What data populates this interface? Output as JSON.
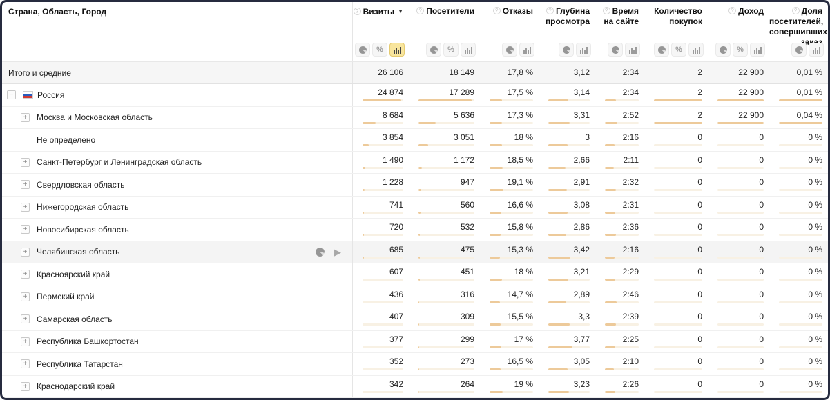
{
  "table": {
    "name_column_header": "Страна, Область, Город",
    "columns": [
      {
        "id": "visits",
        "label": "Визиты",
        "help": true,
        "sort": "desc",
        "toggles": [
          "pie",
          "percent",
          "bar"
        ],
        "active": "bar"
      },
      {
        "id": "visitors",
        "label": "Посетители",
        "help": true,
        "toggles": [
          "pie",
          "percent",
          "bar"
        ]
      },
      {
        "id": "bounces",
        "label": "Отказы",
        "help": true,
        "toggles": [
          "pie",
          "bar"
        ]
      },
      {
        "id": "depth",
        "label": "Глубина просмотра",
        "help": true,
        "toggles": [
          "pie",
          "bar"
        ]
      },
      {
        "id": "time-on-site",
        "label": "Время на сайте",
        "help": true,
        "toggles": [
          "pie",
          "bar"
        ]
      },
      {
        "id": "purchases",
        "label": "Количество покупок",
        "help": false,
        "toggles": [
          "pie",
          "percent",
          "bar"
        ]
      },
      {
        "id": "revenue",
        "label": "Доход",
        "help": true,
        "toggles": [
          "pie",
          "percent",
          "bar"
        ]
      },
      {
        "id": "order-share",
        "label": "Доля посетителей, совершивших заказ",
        "help": true,
        "toggles": [
          "pie",
          "bar"
        ]
      }
    ],
    "totals_row": {
      "label": "Итого и средние",
      "values": [
        "26 106",
        "18 149",
        "17,8 %",
        "3,12",
        "2:34",
        "2",
        "22 900",
        "0,01 %"
      ]
    },
    "rows": [
      {
        "label": "Россия",
        "level": 0,
        "expand": "minus",
        "flag": "russia",
        "values": [
          "24 874",
          "17 289",
          "17,5 %",
          "3,14",
          "2:34",
          "2",
          "22 900",
          "0,01 %"
        ],
        "bars": [
          0.95,
          0.95,
          0.28,
          0.48,
          0.32,
          1,
          1,
          1
        ]
      },
      {
        "label": "Москва и Московская область",
        "level": 1,
        "expand": "plus",
        "values": [
          "8 684",
          "5 636",
          "17,3 %",
          "3,31",
          "2:52",
          "2",
          "22 900",
          "0,04 %"
        ],
        "bars": [
          0.33,
          0.31,
          0.28,
          0.51,
          0.36,
          1,
          1,
          1
        ]
      },
      {
        "label": "Не определено",
        "level": 1,
        "expand": null,
        "values": [
          "3 854",
          "3 051",
          "18 %",
          "3",
          "2:16",
          "0",
          "0",
          "0 %"
        ],
        "bars": [
          0.15,
          0.17,
          0.29,
          0.46,
          0.28,
          0,
          0,
          0
        ]
      },
      {
        "label": "Санкт-Петербург и Ленинградская область",
        "level": 1,
        "expand": "plus",
        "values": [
          "1 490",
          "1 172",
          "18,5 %",
          "2,66",
          "2:11",
          "0",
          "0",
          "0 %"
        ],
        "bars": [
          0.06,
          0.065,
          0.3,
          0.41,
          0.27,
          0,
          0,
          0
        ]
      },
      {
        "label": "Свердловская область",
        "level": 1,
        "expand": "plus",
        "values": [
          "1 228",
          "947",
          "19,1 %",
          "2,91",
          "2:32",
          "0",
          "0",
          "0 %"
        ],
        "bars": [
          0.05,
          0.052,
          0.31,
          0.45,
          0.32,
          0,
          0,
          0
        ]
      },
      {
        "label": "Нижегородская область",
        "level": 1,
        "expand": "plus",
        "values": [
          "741",
          "560",
          "16,6 %",
          "3,08",
          "2:31",
          "0",
          "0",
          "0 %"
        ],
        "bars": [
          0.03,
          0.031,
          0.27,
          0.47,
          0.31,
          0,
          0,
          0
        ]
      },
      {
        "label": "Новосибирская область",
        "level": 1,
        "expand": "plus",
        "values": [
          "720",
          "532",
          "15,8 %",
          "2,86",
          "2:36",
          "0",
          "0",
          "0 %"
        ],
        "bars": [
          0.028,
          0.029,
          0.25,
          0.44,
          0.33,
          0,
          0,
          0
        ]
      },
      {
        "label": "Челябинская область",
        "level": 1,
        "expand": "plus",
        "hover": true,
        "values": [
          "685",
          "475",
          "15,3 %",
          "3,42",
          "2:16",
          "0",
          "0",
          "0 %"
        ],
        "bars": [
          0.026,
          0.026,
          0.24,
          0.53,
          0.28,
          0,
          0,
          0
        ]
      },
      {
        "label": "Красноярский край",
        "level": 1,
        "expand": "plus",
        "values": [
          "607",
          "451",
          "18 %",
          "3,21",
          "2:29",
          "0",
          "0",
          "0 %"
        ],
        "bars": [
          0.023,
          0.025,
          0.29,
          0.49,
          0.31,
          0,
          0,
          0
        ]
      },
      {
        "label": "Пермский край",
        "level": 1,
        "expand": "plus",
        "values": [
          "436",
          "316",
          "14,7 %",
          "2,89",
          "2:46",
          "0",
          "0",
          "0 %"
        ],
        "bars": [
          0.017,
          0.017,
          0.24,
          0.44,
          0.35,
          0,
          0,
          0
        ]
      },
      {
        "label": "Самарская область",
        "level": 1,
        "expand": "plus",
        "values": [
          "407",
          "309",
          "15,5 %",
          "3,3",
          "2:39",
          "0",
          "0",
          "0 %"
        ],
        "bars": [
          0.016,
          0.017,
          0.25,
          0.51,
          0.33,
          0,
          0,
          0
        ]
      },
      {
        "label": "Республика Башкортостан",
        "level": 1,
        "expand": "plus",
        "values": [
          "377",
          "299",
          "17 %",
          "3,77",
          "2:25",
          "0",
          "0",
          "0 %"
        ],
        "bars": [
          0.014,
          0.016,
          0.27,
          0.58,
          0.3,
          0,
          0,
          0
        ]
      },
      {
        "label": "Республика Татарстан",
        "level": 1,
        "expand": "plus",
        "values": [
          "352",
          "273",
          "16,5 %",
          "3,05",
          "2:10",
          "0",
          "0",
          "0 %"
        ],
        "bars": [
          0.013,
          0.015,
          0.26,
          0.47,
          0.27,
          0,
          0,
          0
        ]
      },
      {
        "label": "Краснодарский край",
        "level": 1,
        "expand": "plus",
        "values": [
          "342",
          "264",
          "19 %",
          "3,23",
          "2:26",
          "0",
          "0",
          "0 %"
        ],
        "bars": [
          0.013,
          0.015,
          0.3,
          0.5,
          0.3,
          0,
          0,
          0
        ]
      }
    ]
  },
  "hover_row_icons": [
    "pie-chart",
    "play"
  ],
  "colors": {
    "bar_fill": "#edca9a",
    "bar_track": "#f8f1e4",
    "active_toggle_bg": "#f8e59d",
    "hover_row_bg": "#f4f4f4",
    "totals_row_bg": "#f6f6f6",
    "window_border": "#262b3f"
  }
}
